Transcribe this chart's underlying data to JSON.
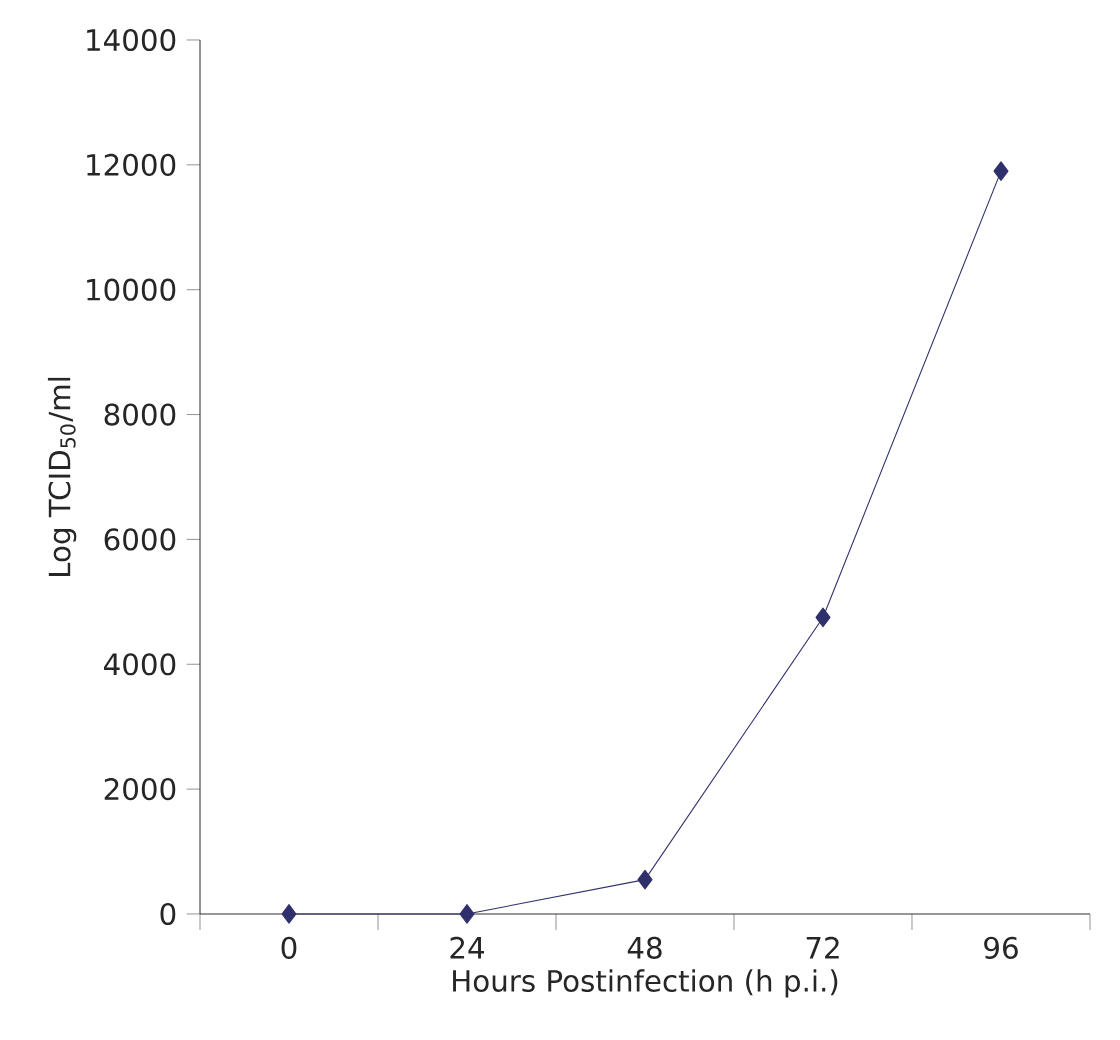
{
  "chart_data": {
    "type": "line",
    "xlabel": "Hours Postinfection (h p.i.)",
    "ylabel": "Log TCID$_{50}$/ml",
    "categories": [
      "0",
      "24",
      "48",
      "72",
      "96"
    ],
    "series": [
      {
        "color": "#2e2f6b",
        "values": [
          0,
          0,
          550,
          4750,
          11900
        ]
      }
    ],
    "ylim": [
      0,
      14000
    ],
    "yticks": [
      0,
      2000,
      4000,
      6000,
      8000,
      10000,
      12000,
      14000
    ],
    "marker": "diamond",
    "line_style": "solid",
    "grid": false
  }
}
